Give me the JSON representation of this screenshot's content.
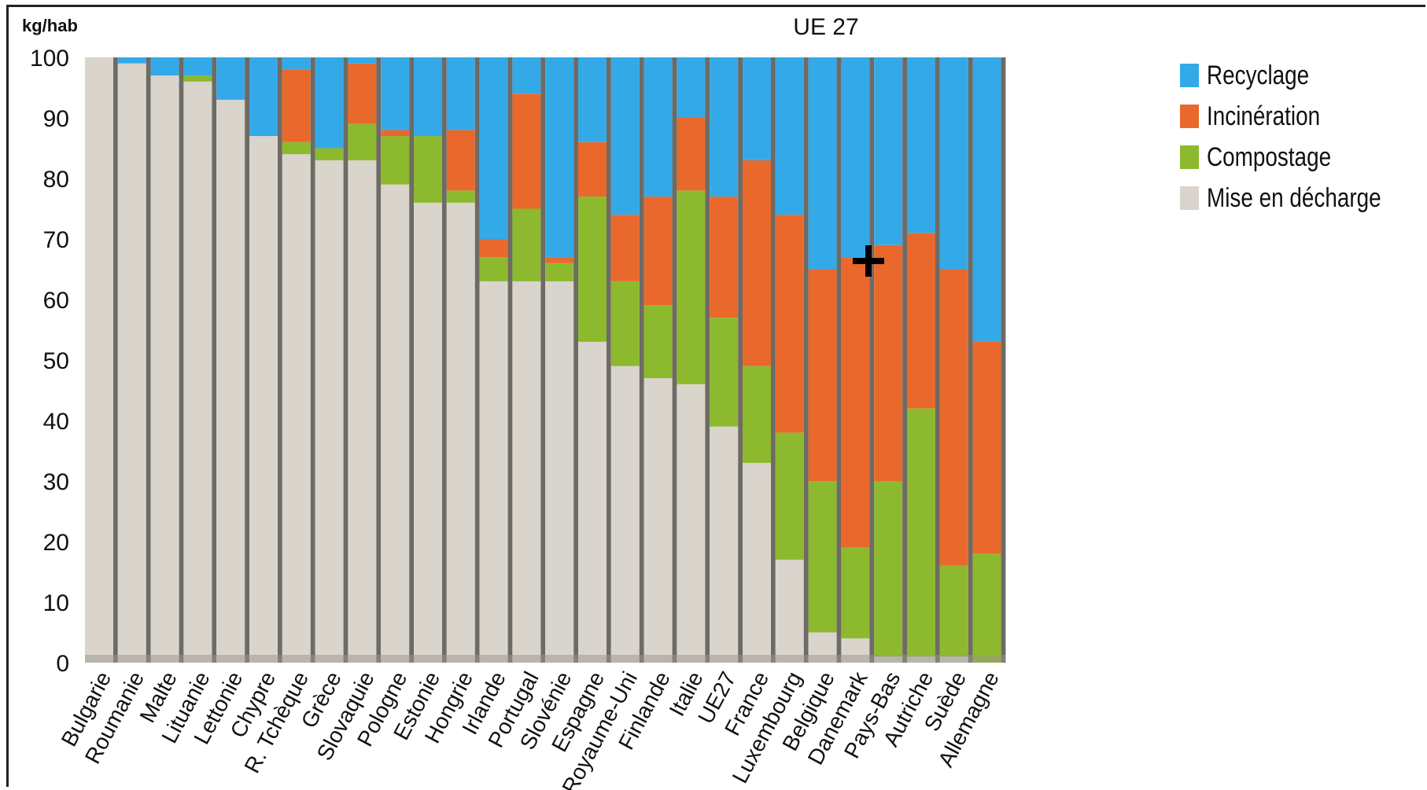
{
  "chart_data": {
    "type": "bar",
    "stacked": true,
    "title": "UE 27",
    "ylabel": "kg/hab",
    "xlabel": "",
    "ylim": [
      0,
      100
    ],
    "yticks": [
      0,
      10,
      20,
      30,
      40,
      50,
      60,
      70,
      80,
      90,
      100
    ],
    "grid": false,
    "legend_position": "right",
    "categories": [
      "Bulgarie",
      "Roumanie",
      "Malte",
      "Lituanie",
      "Lettonie",
      "Chypre",
      "R. Tchèque",
      "Grèce",
      "Slovaquie",
      "Pologne",
      "Estonie",
      "Hongrie",
      "Irlande",
      "Portugal",
      "Slovénie",
      "Espagne",
      "Royaume-Uni",
      "Finlande",
      "Italie",
      "UE27",
      "France",
      "Luxembourg",
      "Belgique",
      "Danemark",
      "Pays-Bas",
      "Autriche",
      "Suède",
      "Allemagne"
    ],
    "series": [
      {
        "name": "Mise en décharge",
        "color": "#d9d4cc",
        "values": [
          100,
          99,
          97,
          96,
          93,
          87,
          84,
          83,
          83,
          79,
          76,
          76,
          63,
          63,
          63,
          53,
          49,
          47,
          46,
          39,
          33,
          17,
          5,
          4,
          1,
          1,
          1,
          0
        ]
      },
      {
        "name": "Compostage",
        "color": "#8db92e",
        "values": [
          0,
          0,
          0,
          1,
          0,
          0,
          2,
          2,
          6,
          8,
          11,
          2,
          4,
          12,
          3,
          24,
          14,
          12,
          32,
          18,
          16,
          21,
          25,
          15,
          29,
          41,
          15,
          18
        ]
      },
      {
        "name": "Incinération",
        "color": "#e8692b",
        "values": [
          0,
          0,
          0,
          0,
          0,
          0,
          12,
          0,
          10,
          1,
          0,
          10,
          3,
          19,
          1,
          9,
          11,
          18,
          12,
          20,
          34,
          36,
          35,
          48,
          39,
          29,
          49,
          35
        ]
      },
      {
        "name": "Recyclage",
        "color": "#34a9e8",
        "values": [
          0,
          1,
          3,
          3,
          7,
          13,
          2,
          15,
          1,
          12,
          13,
          12,
          30,
          6,
          33,
          14,
          26,
          23,
          10,
          23,
          17,
          26,
          35,
          33,
          31,
          29,
          35,
          47
        ]
      }
    ]
  },
  "legend": [
    {
      "label": "Recyclage",
      "color": "#34a9e8"
    },
    {
      "label": "Incinération",
      "color": "#e8692b"
    },
    {
      "label": "Compostage",
      "color": "#8db92e"
    },
    {
      "label": "Mise en décharge",
      "color": "#d9d4cc"
    }
  ],
  "cursor_icon": "crosshair-cursor-icon"
}
